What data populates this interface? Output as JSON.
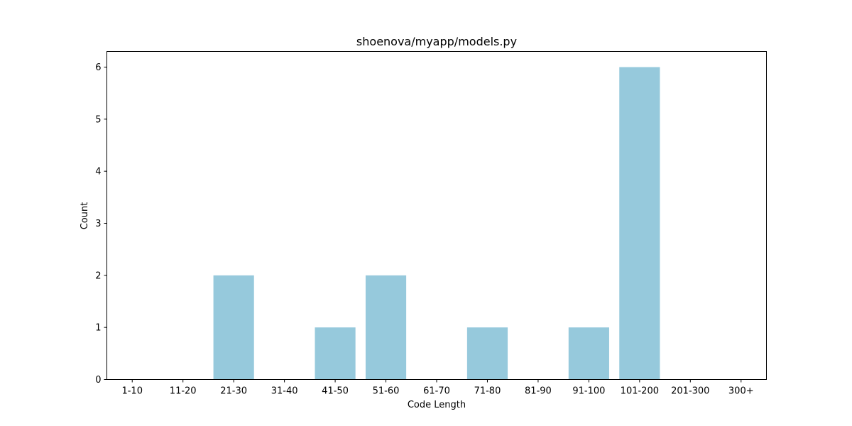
{
  "chart_data": {
    "type": "bar",
    "title": "shoenova/myapp/models.py",
    "xlabel": "Code Length",
    "ylabel": "Count",
    "categories": [
      "1-10",
      "11-20",
      "21-30",
      "31-40",
      "41-50",
      "51-60",
      "61-70",
      "71-80",
      "81-90",
      "91-100",
      "101-200",
      "201-300",
      "300+"
    ],
    "values": [
      0,
      0,
      2,
      0,
      1,
      2,
      0,
      1,
      0,
      1,
      6,
      0,
      0
    ],
    "ylim": [
      0,
      6.3
    ],
    "yticks": [
      "0",
      "1",
      "2",
      "3",
      "4",
      "5",
      "6"
    ],
    "bar_color": "#96c9dc",
    "grid": false,
    "legend": "none"
  }
}
